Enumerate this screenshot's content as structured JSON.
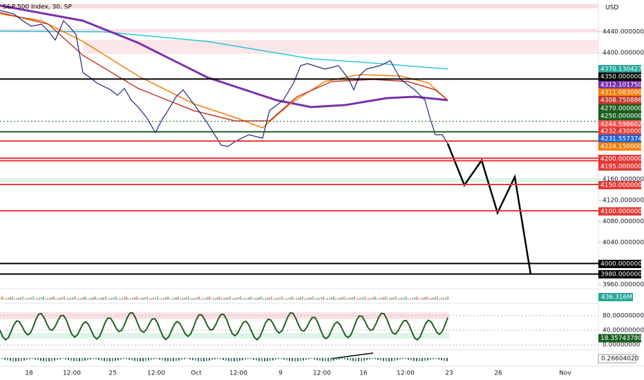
{
  "header": {
    "title": "S&P 500 Index, 30, SP",
    "currency": "USD"
  },
  "price_axis": {
    "ylim": [
      3952,
      4500
    ],
    "ticks": [
      {
        "value": 4440,
        "label": "4440.00000000"
      },
      {
        "value": 4400,
        "label": "4400.00000000"
      },
      {
        "value": 4160,
        "label": "4160.00000000"
      },
      {
        "value": 4120,
        "label": "4120.00000000"
      },
      {
        "value": 4080,
        "label": "4080.00000000"
      },
      {
        "value": 4040,
        "label": "4040.00000000"
      },
      {
        "value": 3960,
        "label": "3960.00000000"
      }
    ]
  },
  "price_tags": [
    {
      "value": 4370.13042768,
      "label": "4370.13042768",
      "color": "#26a69a"
    },
    {
      "value": 4350,
      "label": "4350.00000000",
      "color": "#000000",
      "line": "solid"
    },
    {
      "value": 4312.10175,
      "label": "4312.10175000",
      "color": "#7b2fa8"
    },
    {
      "value": 4311.08309091,
      "label": "4311.08309091",
      "color": "#f57c00"
    },
    {
      "value": 4308.75088601,
      "label": "4308.75088601",
      "color": "#c0392b"
    },
    {
      "value": 4270,
      "label": "4270.00000000",
      "color": "#1b5e20",
      "line": "dotted"
    },
    {
      "value": 4250,
      "label": "4250.00000000",
      "color": "#1b5e20",
      "line": "solid"
    },
    {
      "value": 4244.59860213,
      "label": "4244.59860213",
      "color": "#ef5350"
    },
    {
      "value": 4232.43,
      "label": "4232.43000000",
      "color": "#e53935",
      "line": "solid"
    },
    {
      "value": 4231.55737416,
      "label": "4231.55737416",
      "color": "#1e63d6"
    },
    {
      "value": 4224.15,
      "label": "4224.15000000",
      "color": "#f57c00"
    },
    {
      "value": 4200,
      "label": "4200.00000000",
      "color": "#e53935",
      "line": "solid"
    },
    {
      "value": 4195,
      "label": "4195.00000000",
      "color": "#e53935",
      "line": "solid"
    },
    {
      "value": 4150,
      "label": "4150.00000000",
      "color": "#e53935",
      "line": "solid"
    },
    {
      "value": 4100,
      "label": "4100.00000000",
      "color": "#e53935",
      "line": "solid"
    },
    {
      "value": 4000,
      "label": "4000.00000000",
      "color": "#000000",
      "line": "solid"
    },
    {
      "value": 3980,
      "label": "3980.00000000",
      "color": "#000000",
      "line": "solid"
    }
  ],
  "volume": {
    "label": "436.316M"
  },
  "rsi": {
    "ylim": [
      -11,
      112
    ],
    "ticks": [
      {
        "value": 80,
        "label": "80.00000000"
      },
      {
        "value": 40,
        "label": "40.00000000"
      },
      {
        "value": 0,
        "label": "0.00000000"
      }
    ],
    "tag": {
      "value": 18.3574378,
      "label": "18.35743780"
    }
  },
  "macd": {
    "label": "0.26604020"
  },
  "time_axis": [
    "18",
    "12:00",
    "25",
    "12:00",
    "Oct",
    "12:00",
    "9",
    "12:00",
    "16",
    "12:00",
    "23",
    "26",
    "Nov"
  ]
}
